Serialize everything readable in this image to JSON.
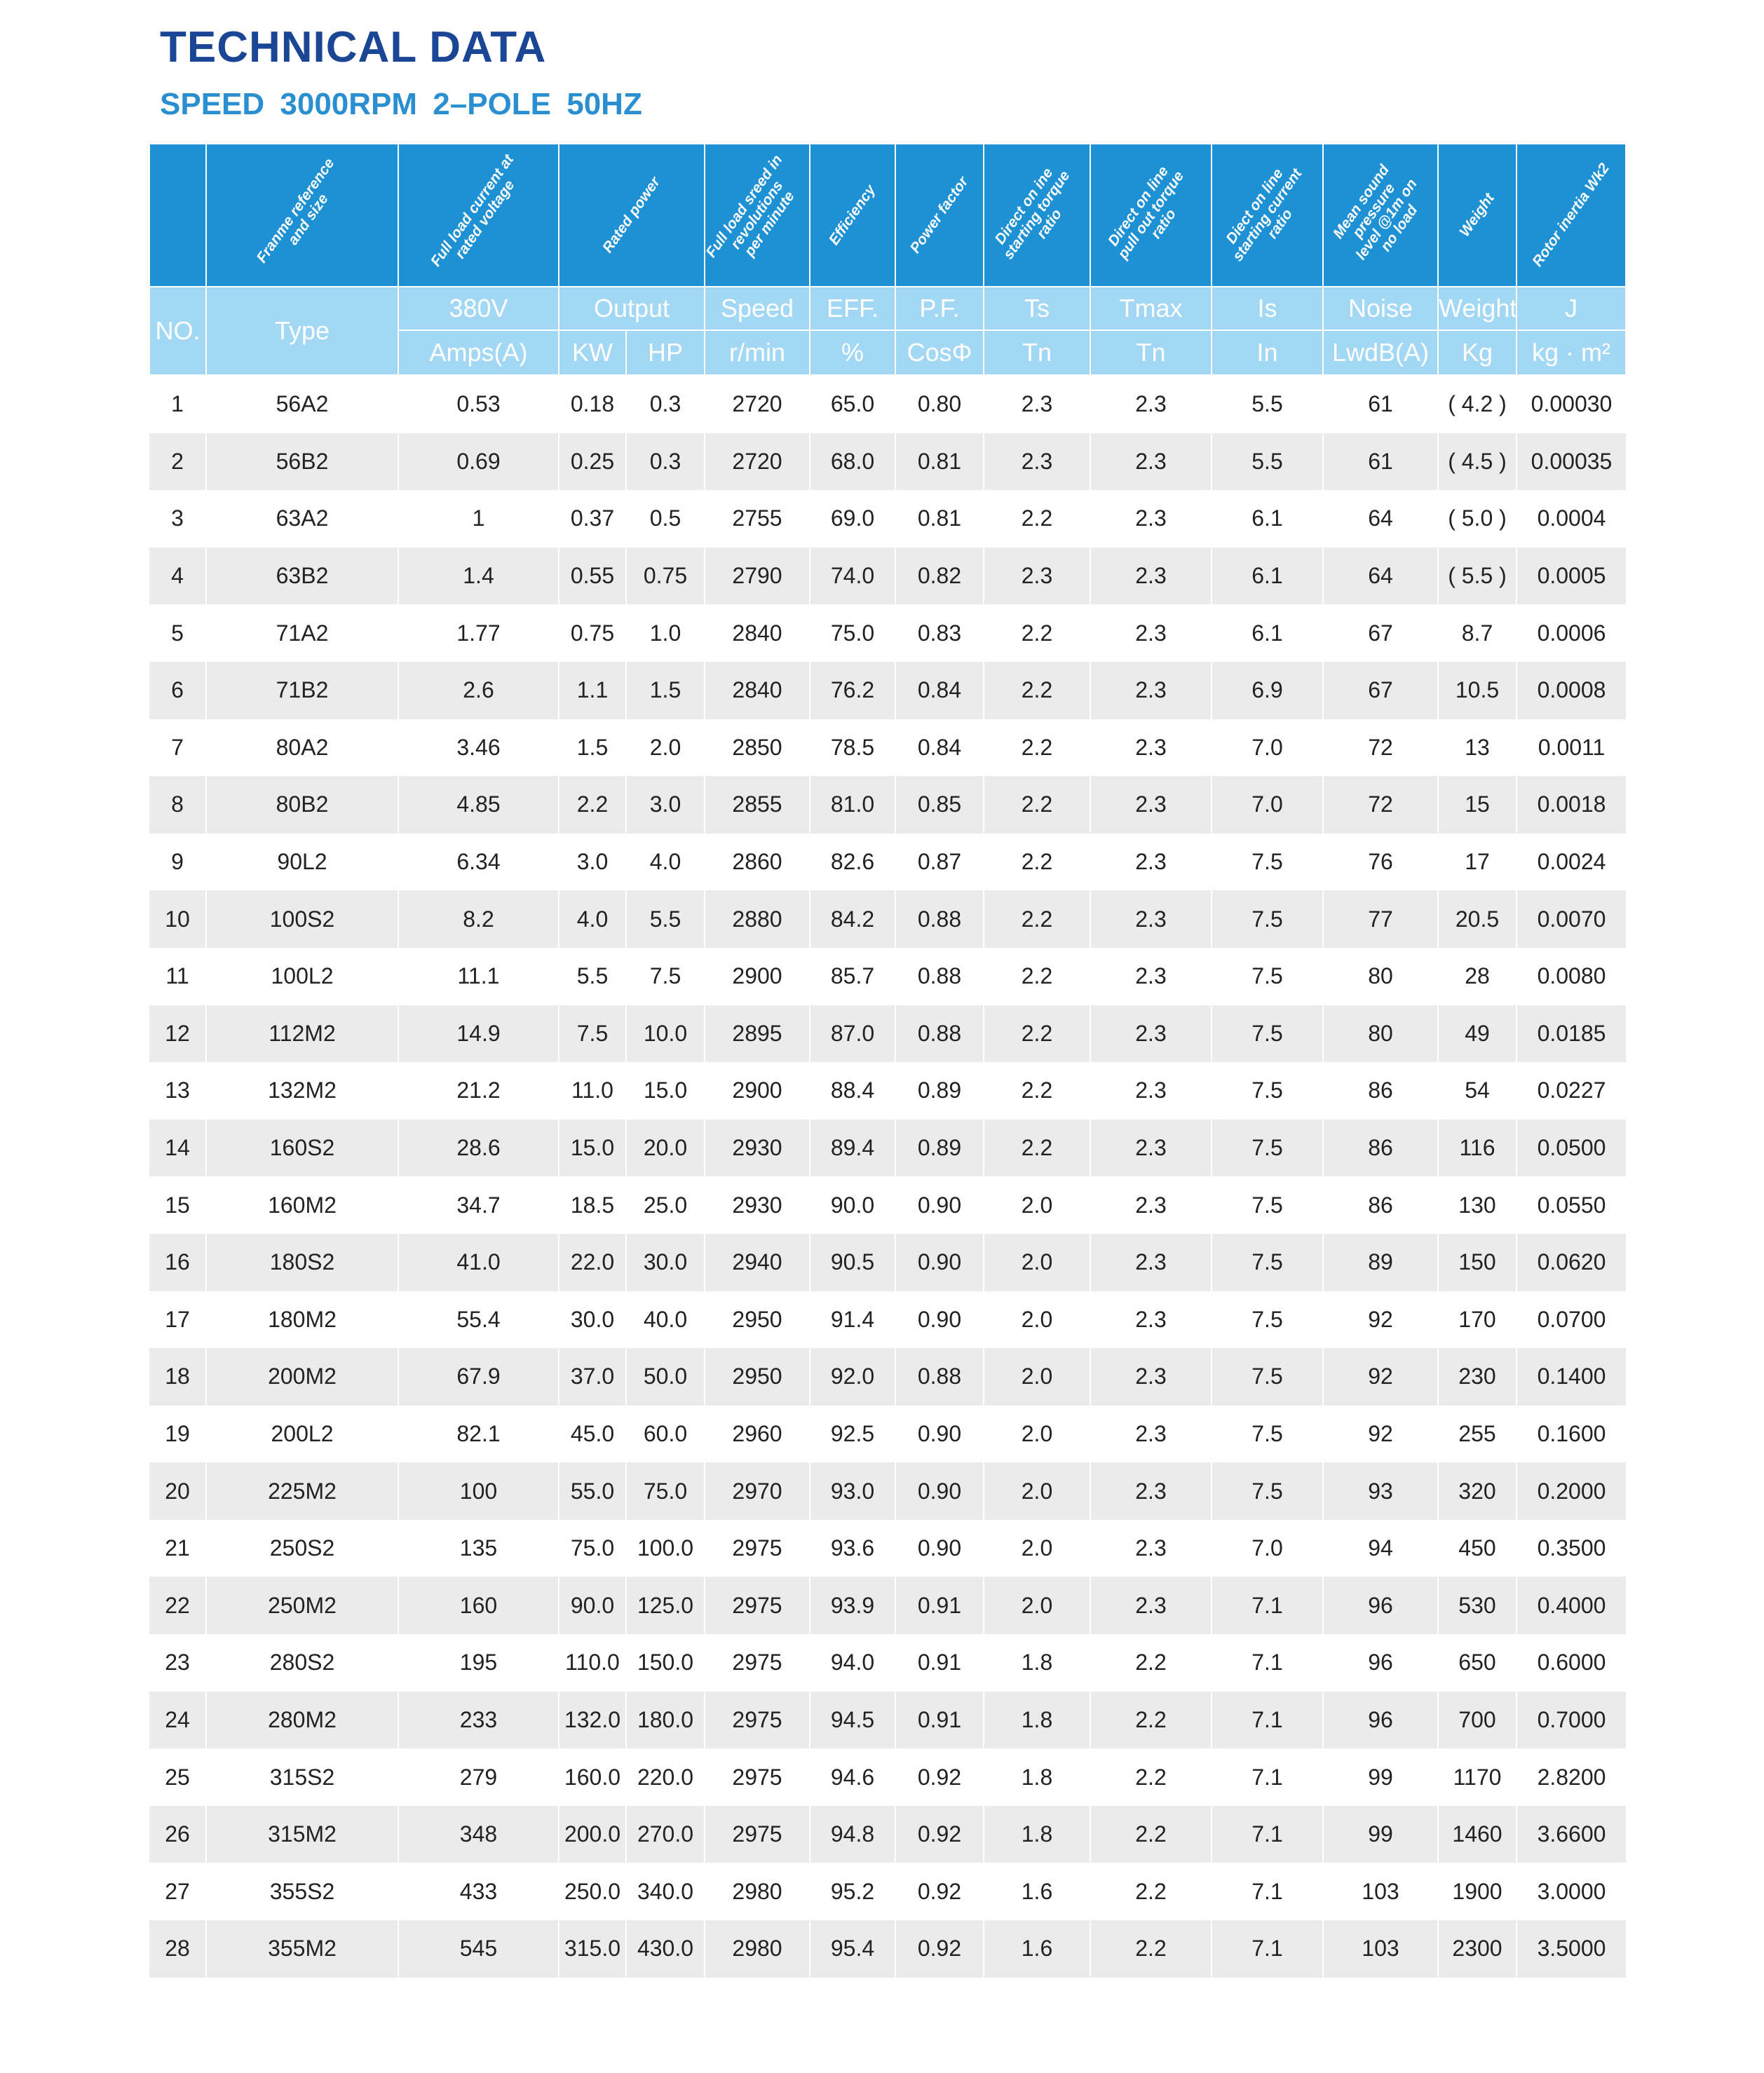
{
  "title": "TECHNICAL DATA",
  "subtitle": "SPEED  3000RPM  2–POLE  50HZ",
  "colors": {
    "title": "#1b4595",
    "subtitle": "#2a8fd0",
    "header": "#1e90d4",
    "subheader": "#a3d8f4",
    "stripe": "#ebebeb"
  },
  "header": {
    "descriptions": [
      "Franme reference\nand size",
      "Full load current at\nrated voltage",
      "Rated power",
      "Full load sreed in\nrevolutions\nper minute",
      "Efficiency",
      "Power factor",
      "Direct on ine\nstarting torque\nratio",
      "Direct on line\npull out torque\nratio",
      "Diect on line\nstarting current\nratio",
      "Mean sound\npressure\nlevel @1m on\nno load",
      "Weight",
      "Rotor inertia Wk2"
    ],
    "no": "NO.",
    "type": "Type",
    "row1": [
      "380V",
      "Output",
      "Speed",
      "EFF.",
      "P.F.",
      "Ts",
      "Tmax",
      "Is",
      "Noise",
      "Weight",
      "J"
    ],
    "row2": [
      "Amps(A)",
      "KW",
      "HP",
      "r/min",
      "%",
      "CosΦ",
      "Tn",
      "Tn",
      "In",
      "LwdB(A)",
      "Kg",
      "kg · m²"
    ]
  },
  "rows": [
    [
      "1",
      "56A2",
      "0.53",
      "0.18",
      "0.3",
      "2720",
      "65.0",
      "0.80",
      "2.3",
      "2.3",
      "5.5",
      "61",
      "( 4.2 )",
      "0.00030"
    ],
    [
      "2",
      "56B2",
      "0.69",
      "0.25",
      "0.3",
      "2720",
      "68.0",
      "0.81",
      "2.3",
      "2.3",
      "5.5",
      "61",
      "( 4.5 )",
      "0.00035"
    ],
    [
      "3",
      "63A2",
      "1",
      "0.37",
      "0.5",
      "2755",
      "69.0",
      "0.81",
      "2.2",
      "2.3",
      "6.1",
      "64",
      "( 5.0 )",
      "0.0004"
    ],
    [
      "4",
      "63B2",
      "1.4",
      "0.55",
      "0.75",
      "2790",
      "74.0",
      "0.82",
      "2.3",
      "2.3",
      "6.1",
      "64",
      "( 5.5 )",
      "0.0005"
    ],
    [
      "5",
      "71A2",
      "1.77",
      "0.75",
      "1.0",
      "2840",
      "75.0",
      "0.83",
      "2.2",
      "2.3",
      "6.1",
      "67",
      "8.7",
      "0.0006"
    ],
    [
      "6",
      "71B2",
      "2.6",
      "1.1",
      "1.5",
      "2840",
      "76.2",
      "0.84",
      "2.2",
      "2.3",
      "6.9",
      "67",
      "10.5",
      "0.0008"
    ],
    [
      "7",
      "80A2",
      "3.46",
      "1.5",
      "2.0",
      "2850",
      "78.5",
      "0.84",
      "2.2",
      "2.3",
      "7.0",
      "72",
      "13",
      "0.0011"
    ],
    [
      "8",
      "80B2",
      "4.85",
      "2.2",
      "3.0",
      "2855",
      "81.0",
      "0.85",
      "2.2",
      "2.3",
      "7.0",
      "72",
      "15",
      "0.0018"
    ],
    [
      "9",
      "90L2",
      "6.34",
      "3.0",
      "4.0",
      "2860",
      "82.6",
      "0.87",
      "2.2",
      "2.3",
      "7.5",
      "76",
      "17",
      "0.0024"
    ],
    [
      "10",
      "100S2",
      "8.2",
      "4.0",
      "5.5",
      "2880",
      "84.2",
      "0.88",
      "2.2",
      "2.3",
      "7.5",
      "77",
      "20.5",
      "0.0070"
    ],
    [
      "11",
      "100L2",
      "11.1",
      "5.5",
      "7.5",
      "2900",
      "85.7",
      "0.88",
      "2.2",
      "2.3",
      "7.5",
      "80",
      "28",
      "0.0080"
    ],
    [
      "12",
      "112M2",
      "14.9",
      "7.5",
      "10.0",
      "2895",
      "87.0",
      "0.88",
      "2.2",
      "2.3",
      "7.5",
      "80",
      "49",
      "0.0185"
    ],
    [
      "13",
      "132M2",
      "21.2",
      "11.0",
      "15.0",
      "2900",
      "88.4",
      "0.89",
      "2.2",
      "2.3",
      "7.5",
      "86",
      "54",
      "0.0227"
    ],
    [
      "14",
      "160S2",
      "28.6",
      "15.0",
      "20.0",
      "2930",
      "89.4",
      "0.89",
      "2.2",
      "2.3",
      "7.5",
      "86",
      "116",
      "0.0500"
    ],
    [
      "15",
      "160M2",
      "34.7",
      "18.5",
      "25.0",
      "2930",
      "90.0",
      "0.90",
      "2.0",
      "2.3",
      "7.5",
      "86",
      "130",
      "0.0550"
    ],
    [
      "16",
      "180S2",
      "41.0",
      "22.0",
      "30.0",
      "2940",
      "90.5",
      "0.90",
      "2.0",
      "2.3",
      "7.5",
      "89",
      "150",
      "0.0620"
    ],
    [
      "17",
      "180M2",
      "55.4",
      "30.0",
      "40.0",
      "2950",
      "91.4",
      "0.90",
      "2.0",
      "2.3",
      "7.5",
      "92",
      "170",
      "0.0700"
    ],
    [
      "18",
      "200M2",
      "67.9",
      "37.0",
      "50.0",
      "2950",
      "92.0",
      "0.88",
      "2.0",
      "2.3",
      "7.5",
      "92",
      "230",
      "0.1400"
    ],
    [
      "19",
      "200L2",
      "82.1",
      "45.0",
      "60.0",
      "2960",
      "92.5",
      "0.90",
      "2.0",
      "2.3",
      "7.5",
      "92",
      "255",
      "0.1600"
    ],
    [
      "20",
      "225M2",
      "100",
      "55.0",
      "75.0",
      "2970",
      "93.0",
      "0.90",
      "2.0",
      "2.3",
      "7.5",
      "93",
      "320",
      "0.2000"
    ],
    [
      "21",
      "250S2",
      "135",
      "75.0",
      "100.0",
      "2975",
      "93.6",
      "0.90",
      "2.0",
      "2.3",
      "7.0",
      "94",
      "450",
      "0.3500"
    ],
    [
      "22",
      "250M2",
      "160",
      "90.0",
      "125.0",
      "2975",
      "93.9",
      "0.91",
      "2.0",
      "2.3",
      "7.1",
      "96",
      "530",
      "0.4000"
    ],
    [
      "23",
      "280S2",
      "195",
      "110.0",
      "150.0",
      "2975",
      "94.0",
      "0.91",
      "1.8",
      "2.2",
      "7.1",
      "96",
      "650",
      "0.6000"
    ],
    [
      "24",
      "280M2",
      "233",
      "132.0",
      "180.0",
      "2975",
      "94.5",
      "0.91",
      "1.8",
      "2.2",
      "7.1",
      "96",
      "700",
      "0.7000"
    ],
    [
      "25",
      "315S2",
      "279",
      "160.0",
      "220.0",
      "2975",
      "94.6",
      "0.92",
      "1.8",
      "2.2",
      "7.1",
      "99",
      "1170",
      "2.8200"
    ],
    [
      "26",
      "315M2",
      "348",
      "200.0",
      "270.0",
      "2975",
      "94.8",
      "0.92",
      "1.8",
      "2.2",
      "7.1",
      "99",
      "1460",
      "3.6600"
    ],
    [
      "27",
      "355S2",
      "433",
      "250.0",
      "340.0",
      "2980",
      "95.2",
      "0.92",
      "1.6",
      "2.2",
      "7.1",
      "103",
      "1900",
      "3.0000"
    ],
    [
      "28",
      "355M2",
      "545",
      "315.0",
      "430.0",
      "2980",
      "95.4",
      "0.92",
      "1.6",
      "2.2",
      "7.1",
      "103",
      "2300",
      "3.5000"
    ]
  ]
}
